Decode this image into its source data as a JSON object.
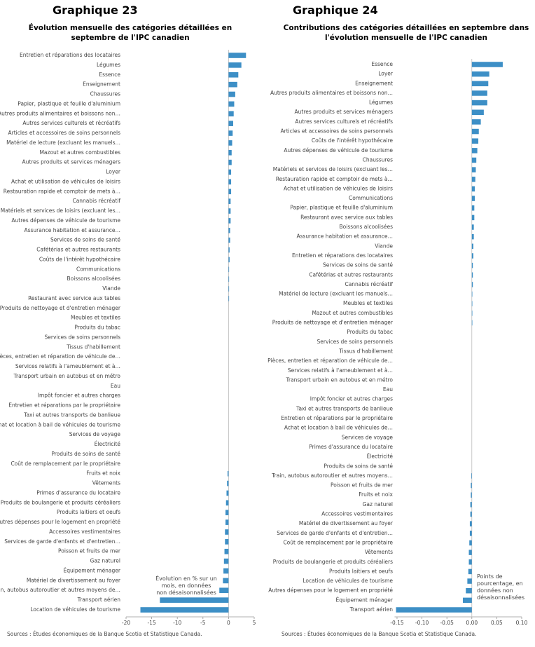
{
  "chart_data": [
    {
      "type": "bar",
      "orientation": "horizontal",
      "title": "Graphique 23",
      "subtitle": "Évolution mensuelle des catégories détaillées en septembre de l'IPC canadien",
      "categories": [
        "Entretien et réparations des locataires",
        "Légumes",
        "Essence",
        "Enseignement",
        "Chaussures",
        "Papier, plastique et feuille d'aluminium",
        "Autres produits alimentaires et boissons non…",
        "Autres services culturels et récréatifs",
        "Articles et accessoires de soins personnels",
        "Matériel de lecture (excluant les manuels…",
        "Mazout et autres combustibles",
        "Autres produits et services ménagers",
        "Loyer",
        "Achat et utilisation de véhicules de loisirs",
        "Restauration rapide et comptoir de mets à…",
        "Cannabis récréatif",
        "Matériels et services de loisirs (excluant les…",
        "Autres dépenses de véhicule de tourisme",
        "Assurance habitation et assurance…",
        "Services de soins de santé",
        "Cafétérias et autres restaurants",
        "Coûts de l'intérêt hypothécaire",
        "Communications",
        "Boissons alcoolisées",
        "Viande",
        "Restaurant avec service aux tables",
        "Produits de nettoyage et d'entretien ménager",
        "Meubles et textiles",
        "Produits du tabac",
        "Services de soins personnels",
        "Tissus d'habillement",
        "Pièces, entretien et réparation de véhicule de…",
        "Services relatifs à l'ameublement et à…",
        "Transport urbain en autobus et en métro",
        "Eau",
        "Impôt foncier et autres charges",
        "Entretien et réparations par le propriétaire",
        "Taxi et autres transports de banlieue",
        "Achat et location à bail de véhicules de tourisme",
        "Services de voyage",
        "Électricité",
        "Produits de soins de santé",
        "Coût de remplacement par le propriétaire",
        "Fruits et noix",
        "Vêtements",
        "Primes d'assurance du locataire",
        "Produits de boulangerie et produits céréaliers",
        "Produits laitiers et oeufs",
        "Autres dépenses pour le logement en propriété",
        "Accessoires vestimentaires",
        "Services de garde d'enfants et d'entretien…",
        "Poisson et fruits de mer",
        "Gaz naturel",
        "Équipement ménager",
        "Matériel de divertissement au foyer",
        "Train, autobus autoroutier et autres moyens de…",
        "Transport aérien",
        "Location de véhicules de tourisme"
      ],
      "values": [
        3.4,
        2.5,
        1.9,
        1.7,
        1.3,
        1.1,
        1.0,
        0.9,
        0.8,
        0.7,
        0.6,
        0.6,
        0.5,
        0.5,
        0.5,
        0.4,
        0.4,
        0.4,
        0.3,
        0.3,
        0.2,
        0.2,
        0.1,
        0.1,
        0.1,
        0.1,
        0,
        0,
        0,
        0,
        0,
        0,
        0,
        0,
        0,
        0,
        0,
        0,
        0,
        0,
        0,
        0,
        0,
        -0.2,
        -0.3,
        -0.4,
        -0.5,
        -0.6,
        -0.6,
        -0.7,
        -0.7,
        -0.8,
        -0.9,
        -1.0,
        -1.1,
        -1.8,
        -13.4,
        -17.2
      ],
      "color": "#3d8fc6",
      "xlim": [
        -20,
        5
      ],
      "xticks": [
        -20,
        -15,
        -10,
        -5,
        0,
        5
      ],
      "annotation": "Évolution en % sur un mois, en données non désaisonnalisées",
      "source": "Sources : Études économiques de la Banque Scotia et Statistique Canada."
    },
    {
      "type": "bar",
      "orientation": "horizontal",
      "title": "Graphique 24",
      "subtitle": "Contributions des catégories détaillées en septembre dans l'évolution mensuelle de l'IPC canadien",
      "categories": [
        "Essence",
        "Loyer",
        "Enseignement",
        "Autres produits alimentaires et boissons non…",
        "Légumes",
        "Autres produits et services ménagers",
        "Autres services culturels et récréatifs",
        "Articles et accessoires de soins personnels",
        "Coûts de l'intérêt hypothécaire",
        "Autres dépenses de véhicule de tourisme",
        "Chaussures",
        "Matériels et services de loisirs (excluant les…",
        "Restauration rapide et comptoir de mets à…",
        "Achat et utilisation de véhicules de loisirs",
        "Communications",
        "Papier, plastique et feuille d'aluminium",
        "Restaurant avec service aux tables",
        "Boissons alcoolisées",
        "Assurance habitation et assurance…",
        "Viande",
        "Entretien et réparations des locataires",
        "Services de soins de santé",
        "Cafétérias et autres restaurants",
        "Cannabis récréatif",
        "Matériel de lecture (excluant les manuels…",
        "Meubles et textiles",
        "Mazout et autres combustibles",
        "Produits de nettoyage et d'entretien ménager",
        "Produits du tabac",
        "Services de soins personnels",
        "Tissus d'habillement",
        "Pièces, entretien et réparation de véhicule de…",
        "Services relatifs à l'ameublement et à…",
        "Transport urbain en autobus et en métro",
        "Eau",
        "Impôt foncier et autres charges",
        "Taxi et autres transports de banlieue",
        "Entretien et réparations par le propriétaire",
        "Achat et location à bail de véhicules de…",
        "Services de voyage",
        "Primes d'assurance du locataire",
        "Électricité",
        "Produits de soins de santé",
        "Train, autobus autoroutier et autres moyens…",
        "Poisson et fruits de mer",
        "Fruits et noix",
        "Gaz naturel",
        "Accessoires vestimentaires",
        "Matériel de divertissement au foyer",
        "Services de garde d'enfants et d'entretien…",
        "Coût de remplacement par le propriétaire",
        "Vêtements",
        "Produits de boulangerie et produits céréaliers",
        "Produits laitiers et oeufs",
        "Location de véhicules de tourisme",
        "Autres dépenses pour le logement en propriété",
        "Équipement ménager",
        "Transport aérien"
      ],
      "values": [
        0.062,
        0.035,
        0.033,
        0.031,
        0.031,
        0.024,
        0.018,
        0.014,
        0.013,
        0.011,
        0.009,
        0.008,
        0.007,
        0.006,
        0.006,
        0.005,
        0.005,
        0.004,
        0.004,
        0.003,
        0.003,
        0.002,
        0.002,
        0.002,
        0.001,
        0.001,
        0.001,
        0.001,
        0,
        0,
        0,
        0,
        0,
        0,
        0,
        0,
        0,
        0,
        0,
        0,
        0,
        0,
        0,
        -0.001,
        -0.002,
        -0.002,
        -0.003,
        -0.003,
        -0.004,
        -0.004,
        -0.005,
        -0.006,
        -0.006,
        -0.007,
        -0.009,
        -0.012,
        -0.018,
        -0.152
      ],
      "color": "#3d8fc6",
      "xlim": [
        -0.155,
        0.1
      ],
      "xticks": [
        -0.15,
        {
          "value": -0.1,
          "label": "-0.10"
        },
        -0.05,
        {
          "value": 0,
          "label": "0.00"
        },
        0.05,
        {
          "value": 0.1,
          "label": "0.10"
        }
      ],
      "annotation": "Points de pourcentage, en données non désaisonnalisées",
      "source": "Sources : Études économiques de la Banque Scotia et Statistique Canada."
    }
  ]
}
